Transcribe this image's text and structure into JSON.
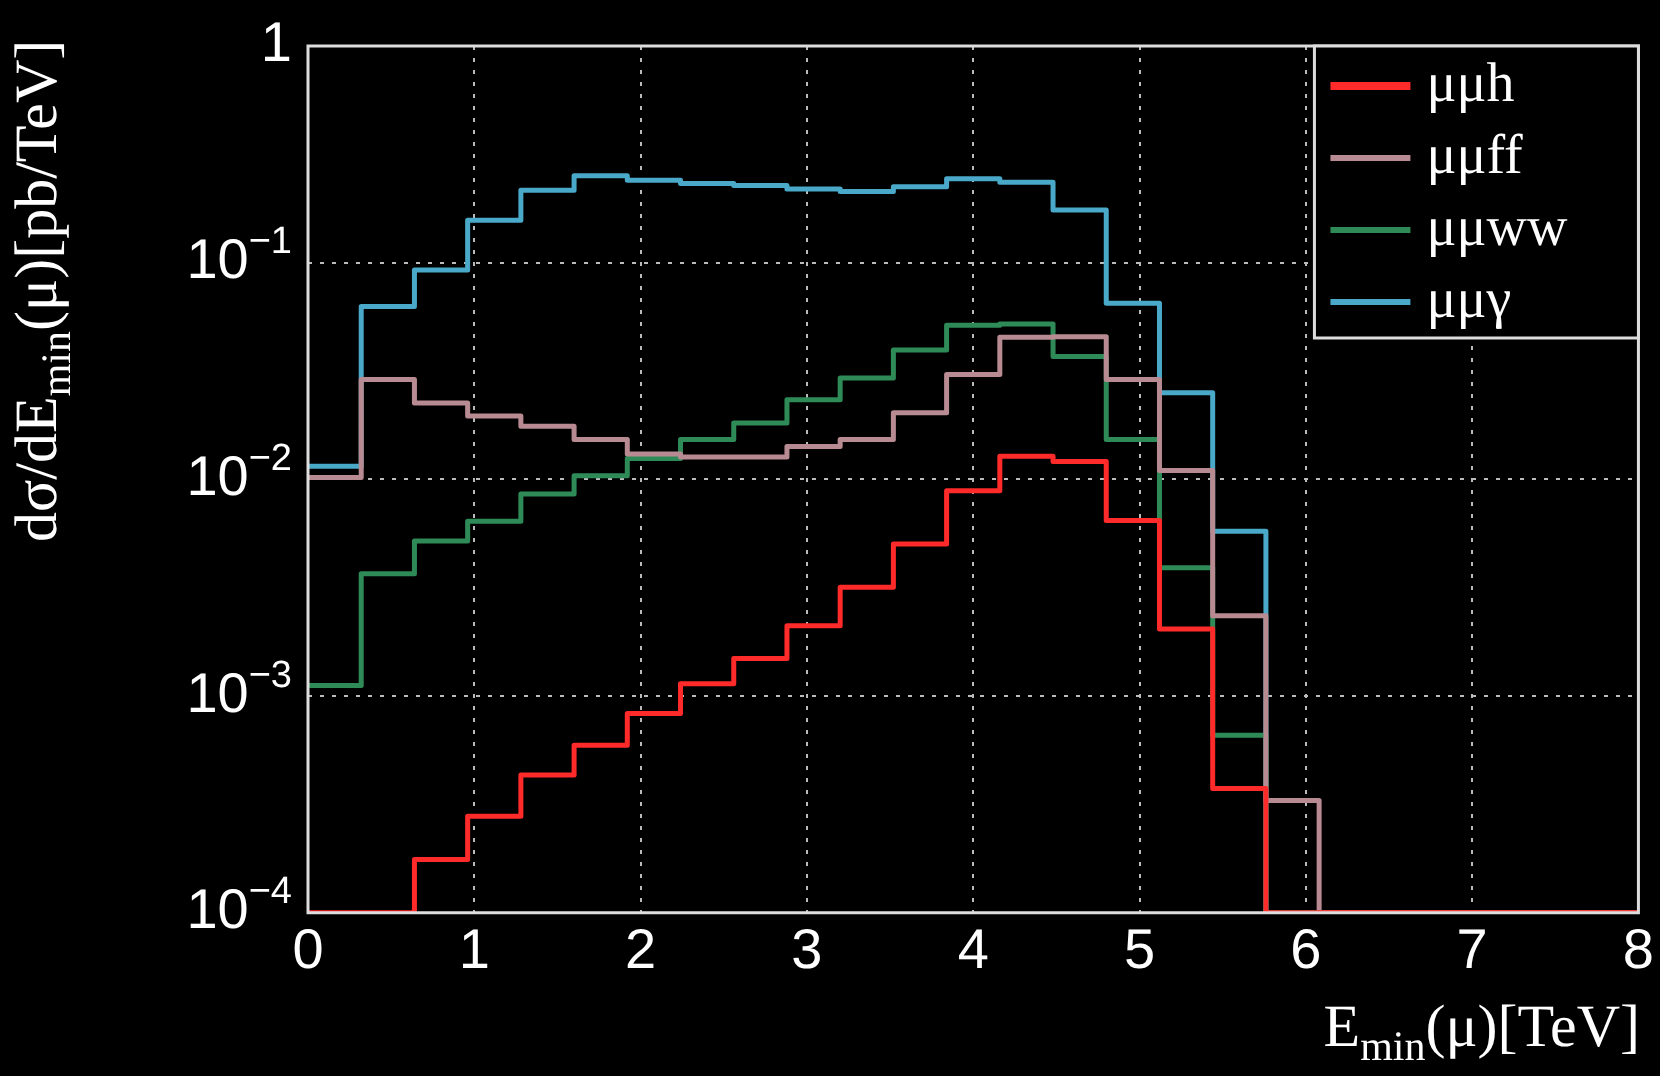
{
  "chart_data": {
    "type": "histogram",
    "xlabel": "E$_{min}$(μ)[TeV]",
    "ylabel": "dσ/dE$_{min}$(μ)[pb/TeV]",
    "bins": [
      0,
      0.32,
      0.64,
      0.96,
      1.28,
      1.6,
      1.92,
      2.24,
      2.56,
      2.88,
      3.2,
      3.52,
      3.84,
      4.16,
      4.48,
      4.8,
      5.12,
      5.44,
      5.76,
      6.08,
      6.4,
      6.72,
      7.04,
      7.36,
      7.68,
      8
    ],
    "series": [
      {
        "name": "μμh",
        "color": "#ff2a2a",
        "values": [
          null,
          null,
          0.000176,
          0.000279,
          0.000432,
          0.000593,
          0.000832,
          0.00114,
          0.00149,
          0.00211,
          0.00318,
          0.00504,
          0.00887,
          0.0128,
          0.0121,
          0.00646,
          0.00204,
          0.000375,
          null,
          null,
          null,
          null,
          null,
          null,
          null
        ]
      },
      {
        "name": "μμff",
        "color": "#b88a92",
        "values": [
          0.0102,
          0.0289,
          0.0225,
          0.0196,
          0.0176,
          0.0153,
          0.0131,
          0.0127,
          0.0127,
          0.0142,
          0.0153,
          0.0203,
          0.0305,
          0.0453,
          0.0455,
          0.0289,
          0.011,
          0.00235,
          0.00033,
          null,
          null,
          null,
          null,
          null,
          null
        ]
      },
      {
        "name": "μμww",
        "color": "#2e8b57",
        "values": [
          0.00112,
          0.00367,
          0.00519,
          0.00641,
          0.00857,
          0.0104,
          0.0125,
          0.0153,
          0.0182,
          0.0233,
          0.0294,
          0.0396,
          0.0515,
          0.0522,
          0.0369,
          0.0153,
          0.00391,
          0.000659,
          null,
          null,
          null,
          null,
          null,
          null,
          null
        ]
      },
      {
        "name": "μμγ",
        "color": "#4aa8c8",
        "values": [
          0.0115,
          0.0628,
          0.0925,
          0.157,
          0.216,
          0.252,
          0.24,
          0.232,
          0.227,
          0.219,
          0.213,
          0.224,
          0.244,
          0.235,
          0.175,
          0.065,
          0.0251,
          0.00577,
          null,
          null,
          null,
          null,
          null,
          null,
          null
        ]
      }
    ],
    "xlim": [
      0,
      8
    ],
    "xticks": [
      0,
      1,
      2,
      3,
      4,
      5,
      6,
      7,
      8
    ],
    "ylim": [
      0.0001,
      1
    ],
    "yticks": [
      {
        "value": 0.0001,
        "label": "10$^{−4}$"
      },
      {
        "value": 0.001,
        "label": "10$^{−3}$"
      },
      {
        "value": 0.01,
        "label": "10$^{−2}$"
      },
      {
        "value": 0.1,
        "label": "10$^{−1}$"
      },
      1
    ],
    "log": "y",
    "grid": true,
    "legend": "top right",
    "marker": "none",
    "line_style": "solid"
  }
}
